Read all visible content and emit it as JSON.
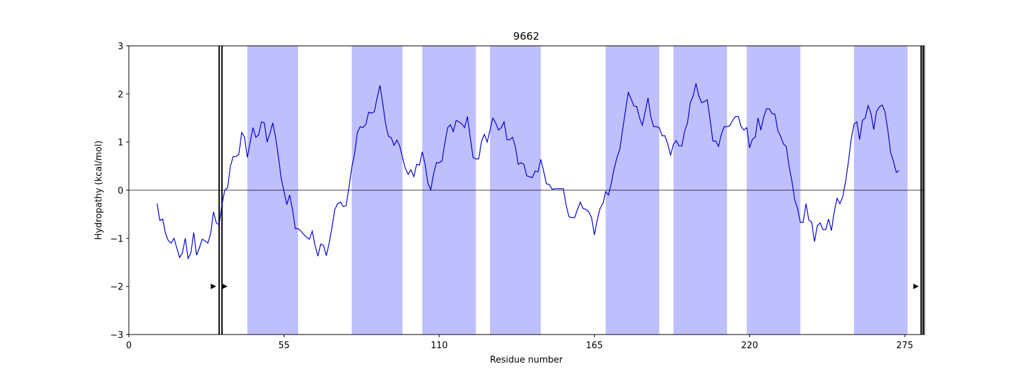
{
  "chart_data": {
    "type": "line",
    "title": "9662",
    "x_label": "Residue number",
    "y_label": "Hydropathy (kcal/mol)",
    "x": [
      10,
      11,
      12,
      13,
      14,
      15,
      16,
      17,
      18,
      19,
      20,
      21,
      22,
      23,
      24,
      25,
      26,
      27,
      28,
      29,
      30,
      31,
      32,
      33,
      34,
      35,
      36,
      37,
      38,
      39,
      40,
      41,
      42,
      43,
      44,
      45,
      46,
      47,
      48,
      49,
      50,
      51,
      52,
      53,
      54,
      55,
      56,
      57,
      58,
      59,
      60,
      61,
      62,
      63,
      64,
      65,
      66,
      67,
      68,
      69,
      70,
      71,
      72,
      73,
      74,
      75,
      76,
      77,
      78,
      79,
      80,
      81,
      82,
      83,
      84,
      85,
      86,
      87,
      88,
      89,
      90,
      91,
      92,
      93,
      94,
      95,
      96,
      97,
      98,
      99,
      100,
      101,
      102,
      103,
      104,
      105,
      106,
      107,
      108,
      109,
      110,
      111,
      112,
      113,
      114,
      115,
      116,
      117,
      118,
      119,
      120,
      121,
      122,
      123,
      124,
      125,
      126,
      127,
      128,
      129,
      130,
      131,
      132,
      133,
      134,
      135,
      136,
      137,
      138,
      139,
      140,
      141,
      142,
      143,
      144,
      145,
      146,
      147,
      148,
      149,
      150,
      151,
      152,
      153,
      154,
      155,
      156,
      157,
      158,
      159,
      160,
      161,
      162,
      163,
      164,
      165,
      166,
      167,
      168,
      169,
      170,
      171,
      172,
      173,
      174,
      175,
      176,
      177,
      178,
      179,
      180,
      181,
      182,
      183,
      184,
      185,
      186,
      187,
      188,
      189,
      190,
      191,
      192,
      193,
      194,
      195,
      196,
      197,
      198,
      199,
      200,
      201,
      202,
      203,
      204,
      205,
      206,
      207,
      208,
      209,
      210,
      211,
      212,
      213,
      214,
      215,
      216,
      217,
      218,
      219,
      220,
      221,
      222,
      223,
      224,
      225,
      226,
      227,
      228,
      229,
      230,
      231,
      232,
      233,
      234,
      235,
      236,
      237,
      238,
      239,
      240,
      241,
      242,
      243,
      244,
      245,
      246,
      247,
      248,
      249,
      250,
      251,
      252,
      253,
      254,
      255,
      256,
      257,
      258,
      259,
      260,
      261,
      262,
      263,
      264,
      265,
      266,
      267,
      268,
      269,
      270,
      271,
      272,
      273
    ],
    "series": [
      {
        "color": "#0000cc",
        "values": [
          -0.28,
          -0.63,
          -0.6,
          -0.9,
          -1.05,
          -1.1,
          -1.0,
          -1.2,
          -1.4,
          -1.3,
          -1.0,
          -1.42,
          -1.3,
          -0.88,
          -1.35,
          -1.2,
          -1.02,
          -1.05,
          -1.1,
          -0.9,
          -0.45,
          -0.68,
          -0.72,
          -0.3,
          0.0,
          0.05,
          0.5,
          0.7,
          0.7,
          0.75,
          1.2,
          1.1,
          0.68,
          1.0,
          1.3,
          1.1,
          1.15,
          1.42,
          1.4,
          1.0,
          1.18,
          1.4,
          1.1,
          0.7,
          0.25,
          -0.03,
          -0.3,
          -0.1,
          -0.4,
          -0.8,
          -0.8,
          -0.85,
          -0.92,
          -0.98,
          -1.02,
          -0.85,
          -1.15,
          -1.37,
          -1.12,
          -1.15,
          -1.36,
          -1.1,
          -0.77,
          -0.4,
          -0.28,
          -0.25,
          -0.34,
          -0.32,
          0.05,
          0.47,
          0.75,
          1.2,
          1.32,
          1.3,
          1.37,
          1.62,
          1.6,
          1.63,
          1.92,
          2.18,
          1.8,
          1.38,
          1.12,
          1.09,
          0.93,
          1.04,
          0.92,
          0.68,
          0.45,
          0.33,
          0.42,
          0.28,
          0.54,
          0.52,
          0.8,
          0.54,
          0.14,
          0.01,
          0.34,
          0.57,
          0.57,
          0.61,
          0.98,
          1.3,
          1.36,
          1.22,
          1.45,
          1.42,
          1.38,
          1.3,
          1.53,
          1.09,
          0.68,
          0.65,
          0.65,
          1.02,
          1.16,
          1.0,
          1.25,
          1.5,
          1.4,
          1.25,
          1.3,
          1.42,
          1.05,
          1.05,
          1.1,
          0.9,
          0.54,
          0.57,
          0.54,
          0.3,
          0.28,
          0.26,
          0.4,
          0.38,
          0.64,
          0.4,
          0.13,
          0.12,
          0.02,
          0.03,
          0.03,
          0.03,
          0.03,
          -0.32,
          -0.55,
          -0.57,
          -0.57,
          -0.4,
          -0.25,
          -0.38,
          -0.4,
          -0.45,
          -0.57,
          -0.93,
          -0.62,
          -0.38,
          -0.28,
          -0.03,
          -0.1,
          0.15,
          0.45,
          0.68,
          0.85,
          1.25,
          1.65,
          2.03,
          1.9,
          1.75,
          1.74,
          1.5,
          1.35,
          1.63,
          1.92,
          1.53,
          1.32,
          1.32,
          1.3,
          1.13,
          1.13,
          0.96,
          0.73,
          0.95,
          1.03,
          0.92,
          0.92,
          1.23,
          1.4,
          1.82,
          1.96,
          2.22,
          1.96,
          1.82,
          1.84,
          1.88,
          1.47,
          1.02,
          1.02,
          0.91,
          1.16,
          1.32,
          1.32,
          1.34,
          1.45,
          1.53,
          1.53,
          1.32,
          1.25,
          1.3,
          0.88,
          1.06,
          1.1,
          1.5,
          1.25,
          1.52,
          1.69,
          1.69,
          1.59,
          1.58,
          1.24,
          1.12,
          0.96,
          0.91,
          0.5,
          0.19,
          -0.2,
          -0.38,
          -0.67,
          -0.67,
          -0.28,
          -0.62,
          -0.66,
          -1.07,
          -0.74,
          -0.68,
          -0.82,
          -0.82,
          -0.6,
          -0.84,
          -0.45,
          -0.17,
          -0.28,
          -0.14,
          0.17,
          0.58,
          1.05,
          1.37,
          1.42,
          1.05,
          1.45,
          1.5,
          1.76,
          1.6,
          1.26,
          1.64,
          1.73,
          1.77,
          1.63,
          1.25,
          0.78,
          0.6,
          0.37,
          0.41
        ]
      }
    ],
    "regions": [
      [
        42,
        60
      ],
      [
        79,
        97
      ],
      [
        104,
        123
      ],
      [
        128,
        146
      ],
      [
        169,
        188
      ],
      [
        193,
        212
      ],
      [
        219,
        238
      ],
      [
        257,
        276
      ]
    ],
    "region_color": "#bfbffd",
    "vlines": [
      32,
      33,
      280.8,
      281.5
    ],
    "markers": {
      "x": [
        30,
        34,
        279
      ],
      "y": [
        -2,
        -2,
        -2
      ]
    },
    "hline": 0,
    "xlim": [
      0,
      282
    ],
    "ylim": [
      -3,
      3
    ],
    "xticks": [
      0,
      55,
      110,
      165,
      220,
      275
    ],
    "yticks": [
      {
        "value": -3,
        "label": "−3"
      },
      {
        "value": -2,
        "label": "−2"
      },
      {
        "value": -1,
        "label": "−1"
      },
      0,
      1,
      2,
      3
    ]
  }
}
